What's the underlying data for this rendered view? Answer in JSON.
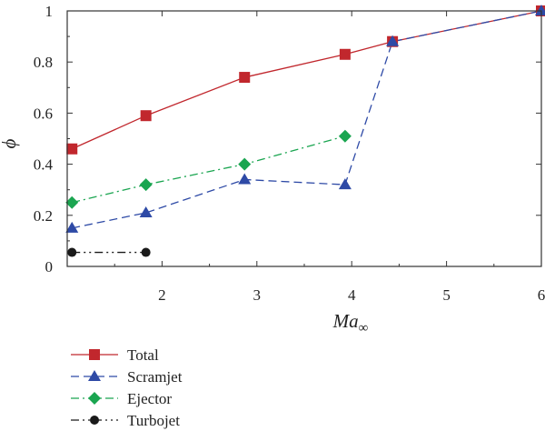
{
  "chart_data": {
    "type": "line",
    "xlabel": "Ma",
    "xlabel_subscript": "∞",
    "ylabel": "ϕ",
    "xlim": [
      1,
      6
    ],
    "ylim": [
      0,
      1
    ],
    "xticks": [
      2,
      3,
      4,
      5,
      6
    ],
    "yticks": [
      0,
      0.2,
      0.4,
      0.6,
      0.8,
      1
    ],
    "ytick_labels": [
      "0",
      "0.2",
      "0.4",
      "0.6",
      "0.8",
      "1"
    ],
    "grid": false,
    "legend_position": "below-left",
    "series": [
      {
        "name": "Total",
        "color": "#c1272d",
        "marker": "square",
        "linestyle": "solid",
        "x": [
          1.05,
          1.83,
          2.87,
          3.93,
          4.43,
          6.0
        ],
        "y": [
          0.46,
          0.59,
          0.74,
          0.83,
          0.88,
          1.0
        ]
      },
      {
        "name": "Scramjet",
        "color": "#2e4aa6",
        "marker": "triangle",
        "linestyle": "dashed",
        "x": [
          1.05,
          1.83,
          2.87,
          3.93,
          4.43,
          6.0
        ],
        "y": [
          0.15,
          0.21,
          0.34,
          0.32,
          0.88,
          1.0
        ]
      },
      {
        "name": "Ejector",
        "color": "#1aa550",
        "marker": "diamond",
        "linestyle": "dashdot",
        "x": [
          1.05,
          1.83,
          2.87,
          3.93
        ],
        "y": [
          0.25,
          0.32,
          0.4,
          0.51
        ]
      },
      {
        "name": "Turbojet",
        "color": "#1a1a1a",
        "marker": "circle",
        "linestyle": "dashdotdot",
        "x": [
          1.05,
          1.83
        ],
        "y": [
          0.055,
          0.055
        ]
      }
    ]
  }
}
